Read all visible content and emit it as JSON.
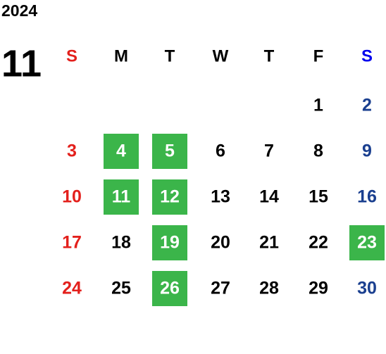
{
  "year": "2024",
  "month": "11",
  "weekdays": [
    "S",
    "M",
    "T",
    "W",
    "T",
    "F",
    "S"
  ],
  "weeks": [
    [
      null,
      null,
      null,
      null,
      null,
      {
        "text": "1"
      },
      {
        "text": "2"
      }
    ],
    [
      {
        "text": "3"
      },
      {
        "text": "4",
        "marked": true
      },
      {
        "text": "5",
        "marked": true
      },
      {
        "text": "6"
      },
      {
        "text": "7"
      },
      {
        "text": "8"
      },
      {
        "text": "9"
      }
    ],
    [
      {
        "text": "10"
      },
      {
        "text": "11",
        "marked": true
      },
      {
        "text": "12",
        "marked": true
      },
      {
        "text": "13"
      },
      {
        "text": "14"
      },
      {
        "text": "15"
      },
      {
        "text": "16"
      }
    ],
    [
      {
        "text": "17"
      },
      {
        "text": "18"
      },
      {
        "text": "19",
        "marked": true
      },
      {
        "text": "20"
      },
      {
        "text": "21"
      },
      {
        "text": "22"
      },
      {
        "text": "23",
        "marked": true
      }
    ],
    [
      {
        "text": "24"
      },
      {
        "text": "25"
      },
      {
        "text": "26",
        "marked": true
      },
      {
        "text": "27"
      },
      {
        "text": "28"
      },
      {
        "text": "29"
      },
      {
        "text": "30"
      }
    ]
  ],
  "colors": {
    "sunday": "#e3201c",
    "saturday_header": "#0000ee",
    "saturday": "#1a3f8f",
    "weekday": "#000000",
    "marked_fill": "#3bb54a",
    "marked_text": "#ffffff"
  }
}
